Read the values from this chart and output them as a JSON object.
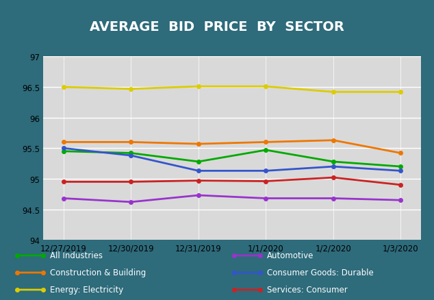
{
  "title": "AVERAGE  BID  PRICE  BY  SECTOR",
  "x_labels": [
    "12/27/2019",
    "12/30/2019",
    "12/31/2019",
    "1/1/2020",
    "1/2/2020",
    "1/3/2020"
  ],
  "ylim": [
    94,
    97
  ],
  "yticks": [
    94,
    94.5,
    95,
    95.5,
    96,
    96.5,
    97
  ],
  "series": [
    {
      "label": "All Industries",
      "color": "#00aa00",
      "values": [
        95.45,
        95.42,
        95.28,
        95.47,
        95.28,
        95.2
      ]
    },
    {
      "label": "Automotive",
      "color": "#9933cc",
      "values": [
        94.68,
        94.62,
        94.73,
        94.68,
        94.68,
        94.65
      ]
    },
    {
      "label": "Construction & Building",
      "color": "#ee7700",
      "values": [
        95.6,
        95.6,
        95.57,
        95.6,
        95.63,
        95.42
      ]
    },
    {
      "label": "Consumer Goods: Durable",
      "color": "#3355cc",
      "values": [
        95.5,
        95.38,
        95.13,
        95.13,
        95.2,
        95.13
      ]
    },
    {
      "label": "Energy: Electricity",
      "color": "#ddcc00",
      "values": [
        96.5,
        96.47,
        96.51,
        96.51,
        96.42,
        96.42
      ]
    },
    {
      "label": "Services: Consumer",
      "color": "#cc2222",
      "values": [
        94.95,
        94.95,
        94.97,
        94.96,
        95.02,
        94.9
      ]
    }
  ],
  "background_color": "#d9d9d9",
  "title_bg_color": "#2e6b7b",
  "title_color": "#ffffff",
  "legend_bg_color": "#2e6b7b",
  "legend_text_color": "#ffffff",
  "grid_color": "#ffffff",
  "figsize": [
    6.34,
    4.39
  ],
  "dpi": 100
}
